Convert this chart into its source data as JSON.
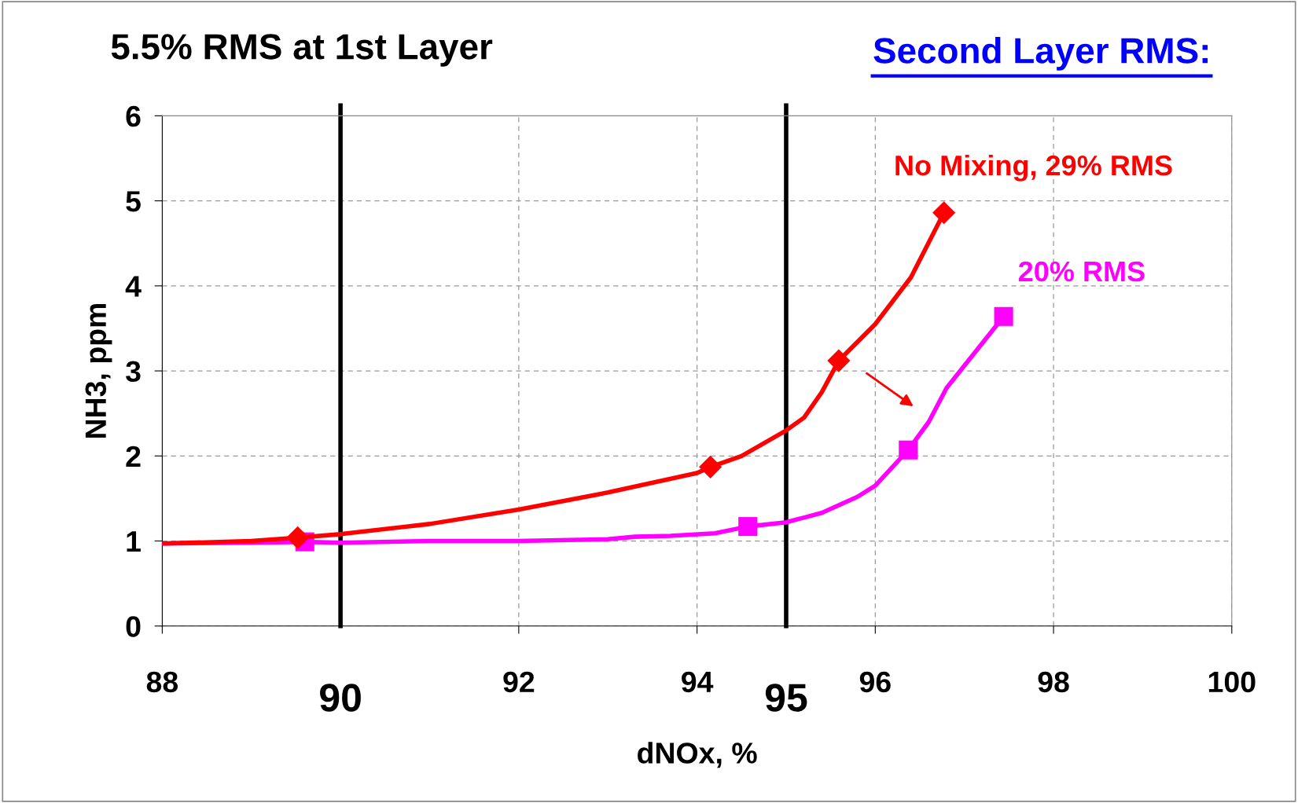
{
  "chart_data": {
    "type": "line",
    "title": "5.5% RMS at 1st Layer",
    "subtitle": "Second Layer RMS:",
    "xlabel": "dNOx, %",
    "ylabel": "NH3, ppm",
    "xlim": [
      88,
      100
    ],
    "xticks": [
      88,
      92,
      94,
      96,
      98,
      100
    ],
    "ylim": [
      0,
      6
    ],
    "yticks": [
      0,
      1,
      2,
      3,
      4,
      5,
      6
    ],
    "grid": true,
    "ref_lines": [
      {
        "axis": "x",
        "value": 90,
        "label": "90",
        "color": "#000000"
      },
      {
        "axis": "x",
        "value": 95,
        "label": "95",
        "color": "#000000"
      }
    ],
    "series": [
      {
        "name": "No Mixing, 29% RMS",
        "color": "#ff0000",
        "marker": "none",
        "x": [
          88,
          89,
          89.52,
          90,
          91,
          92,
          93,
          94,
          94.15,
          94.5,
          95,
          95.2,
          95.4,
          95.59,
          96,
          96.4,
          96.77
        ],
        "values": [
          0.97,
          1.0,
          1.04,
          1.08,
          1.2,
          1.37,
          1.57,
          1.8,
          1.87,
          2.0,
          2.3,
          2.45,
          2.75,
          3.12,
          3.55,
          4.1,
          4.86
        ]
      },
      {
        "name": "20% RMS",
        "color": "#ff00ff",
        "marker": "none",
        "x": [
          88,
          89,
          89.6,
          90,
          91,
          92,
          93,
          93.3,
          93.7,
          94.2,
          94.57,
          95,
          95.4,
          95.8,
          96,
          96.37,
          96.6,
          96.8,
          97.44
        ],
        "values": [
          0.97,
          0.98,
          0.99,
          0.98,
          1.0,
          1.0,
          1.02,
          1.05,
          1.06,
          1.09,
          1.17,
          1.22,
          1.33,
          1.52,
          1.65,
          2.07,
          2.4,
          2.8,
          3.64
        ]
      },
      {
        "type": "scatter",
        "color": "#ff0000",
        "marker": "diamond",
        "x": [
          89.52,
          94.15,
          95.59,
          96.77
        ],
        "values": [
          1.04,
          1.87,
          3.12,
          4.86
        ]
      },
      {
        "type": "scatter",
        "color": "#ff00ff",
        "marker": "square",
        "x": [
          89.6,
          94.57,
          96.37,
          97.44
        ],
        "values": [
          0.99,
          1.17,
          2.07,
          3.64
        ]
      }
    ]
  }
}
